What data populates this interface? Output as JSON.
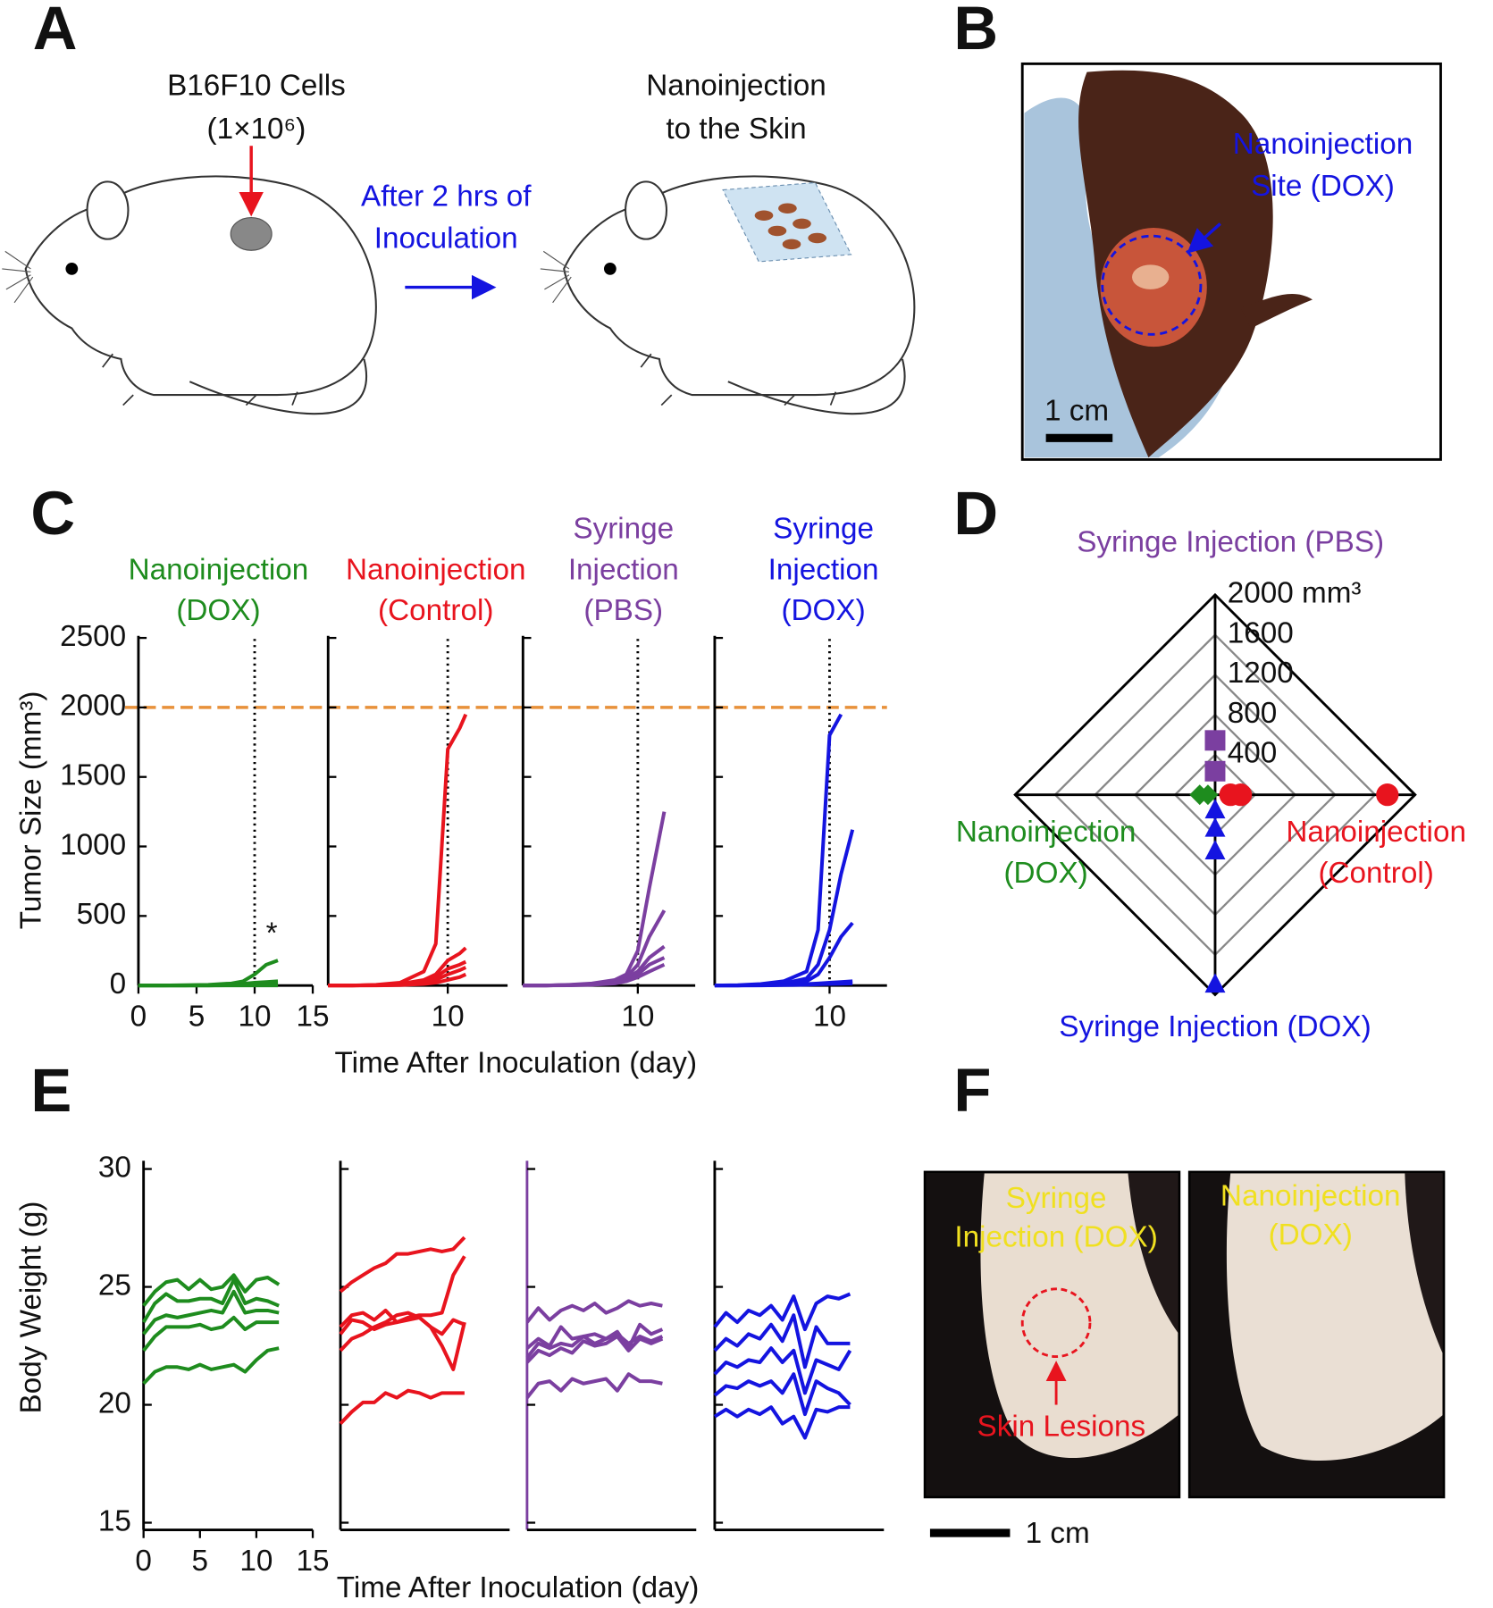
{
  "figure": {
    "panel_a": {
      "label": "A",
      "cells": [
        "B16F10 Cells",
        "(1×10⁶)"
      ],
      "step": [
        "After 2 hrs of",
        "Inoculation"
      ],
      "treatment": [
        "Nanoinjection",
        "to the Skin"
      ]
    },
    "panel_b": {
      "label": "B",
      "site": [
        "Nanoinjection",
        "Site (DOX)"
      ],
      "scale_bar": "1 cm"
    },
    "panel_f": {
      "label": "F",
      "left": [
        "Syringe",
        "Injection (DOX)"
      ],
      "lesions": "Skin Lesions",
      "right": [
        "Nanoinjection",
        "(DOX)"
      ],
      "scale_bar": "1 cm"
    }
  },
  "chart_data": [
    {
      "type": "line",
      "label": "C",
      "xlabel": "Time After Inoculation (day)",
      "ylabel": "Tumor Size (mm³)",
      "ylim": [
        0,
        2500
      ],
      "yticks": [
        0,
        500,
        1000,
        1500,
        2000,
        2500
      ],
      "threshold": 2000,
      "threshold_color": "#e8913a",
      "vline": 10,
      "annotation": "*",
      "subplots": [
        {
          "title": [
            "Nanoinjection",
            "(DOX)"
          ],
          "color": "#1e8c1e",
          "xlim": [
            0,
            15
          ],
          "xticks": [
            0,
            5,
            10,
            15
          ],
          "x": [
            0,
            2,
            4,
            6,
            8,
            9,
            10,
            11,
            12
          ],
          "series": [
            {
              "values": [
                0,
                0,
                2,
                5,
                15,
                30,
                80,
                150,
                180
              ]
            },
            {
              "values": [
                0,
                0,
                0,
                3,
                8,
                12,
                20,
                25,
                30
              ]
            },
            {
              "values": [
                0,
                0,
                0,
                0,
                3,
                5,
                8,
                10,
                12
              ]
            },
            {
              "values": [
                0,
                0,
                0,
                0,
                1,
                2,
                3,
                4,
                5
              ]
            },
            {
              "values": [
                0,
                0,
                0,
                0,
                0,
                0,
                0,
                0,
                0
              ]
            }
          ]
        },
        {
          "title": [
            "Nanoinjection",
            "(Control)"
          ],
          "color": "#e8141e",
          "xlim": [
            0,
            15
          ],
          "xticks": [
            10
          ],
          "x": [
            0,
            2,
            4,
            6,
            8,
            9,
            10,
            11,
            11.5
          ],
          "series": [
            {
              "values": [
                0,
                0,
                5,
                20,
                100,
                300,
                1700,
                1850,
                1950
              ]
            },
            {
              "values": [
                0,
                0,
                2,
                10,
                40,
                80,
                180,
                230,
                270
              ]
            },
            {
              "values": [
                0,
                0,
                2,
                8,
                30,
                60,
                120,
                150,
                170
              ]
            },
            {
              "values": [
                0,
                0,
                1,
                5,
                20,
                40,
                80,
                110,
                130
              ]
            },
            {
              "values": [
                0,
                0,
                0,
                2,
                10,
                20,
                40,
                60,
                80
              ]
            }
          ]
        },
        {
          "title": [
            "Syringe",
            "Injection",
            "(PBS)"
          ],
          "color": "#7b3fa0",
          "xlim": [
            0,
            15
          ],
          "xticks": [
            10
          ],
          "x": [
            0,
            2,
            4,
            6,
            8,
            9,
            10,
            11,
            12.3
          ],
          "series": [
            {
              "values": [
                0,
                0,
                5,
                15,
                40,
                80,
                250,
                700,
                1250
              ]
            },
            {
              "values": [
                0,
                0,
                3,
                10,
                30,
                60,
                150,
                350,
                540
              ]
            },
            {
              "values": [
                0,
                0,
                2,
                8,
                20,
                50,
                100,
                200,
                280
              ]
            },
            {
              "values": [
                0,
                0,
                2,
                6,
                20,
                40,
                80,
                150,
                200
              ]
            },
            {
              "values": [
                0,
                0,
                1,
                5,
                15,
                30,
                60,
                100,
                150
              ]
            }
          ]
        },
        {
          "title": [
            "Syringe",
            "Injection",
            "(DOX)"
          ],
          "color": "#1414e0",
          "xlim": [
            0,
            15
          ],
          "xticks": [
            10
          ],
          "x": [
            0,
            2,
            4,
            6,
            8,
            9,
            10,
            11,
            12
          ],
          "series": [
            {
              "values": [
                0,
                2,
                10,
                30,
                100,
                400,
                1800,
                1950,
                null
              ]
            },
            {
              "values": [
                0,
                0,
                5,
                15,
                50,
                150,
                400,
                800,
                1120
              ]
            },
            {
              "values": [
                0,
                0,
                3,
                10,
                30,
                80,
                200,
                350,
                450
              ]
            },
            {
              "values": [
                0,
                0,
                1,
                5,
                10,
                15,
                20,
                25,
                30
              ]
            },
            {
              "values": [
                0,
                0,
                0,
                2,
                5,
                8,
                10,
                12,
                15
              ]
            }
          ]
        }
      ]
    },
    {
      "type": "radar",
      "label": "D",
      "rlim": [
        0,
        2000
      ],
      "rticks": [
        400,
        800,
        1200,
        1600,
        {
          "value": 2000,
          "label": "2000 mm³"
        }
      ],
      "axes": [
        {
          "name": [
            "Syringe Injection (PBS)"
          ],
          "color": "#7b3fa0",
          "marker": "square",
          "values": [
            544,
            236
          ]
        },
        {
          "name": [
            "Nanoinjection",
            "(Control)"
          ],
          "color": "#e8141e",
          "marker": "circle",
          "values": [
            1723,
            256,
            154
          ]
        },
        {
          "name": [
            "Syringe Injection (DOX)"
          ],
          "color": "#1414e0",
          "marker": "triangle",
          "values": [
            154,
            338,
            564,
            1897
          ]
        },
        {
          "name": [
            "Nanoinjection",
            "(DOX)"
          ],
          "color": "#1e8c1e",
          "marker": "diamond",
          "values": [
            154,
            72
          ]
        }
      ]
    },
    {
      "type": "line",
      "label": "E",
      "xlabel": "Time After Inoculation (day)",
      "ylabel": "Body Weight (g)",
      "ylim": [
        15,
        30
      ],
      "yticks": [
        15,
        20,
        25,
        30
      ],
      "subplots": [
        {
          "color": "#1e8c1e",
          "xlim": [
            0,
            15
          ],
          "xticks": [
            0,
            5,
            10,
            15
          ],
          "x": [
            0,
            1,
            2,
            3,
            4,
            5,
            6,
            7,
            8,
            9,
            10,
            11,
            12
          ],
          "series": [
            {
              "values": [
                24.2,
                24.8,
                25.2,
                25.3,
                24.9,
                25.3,
                24.9,
                25.0,
                25.5,
                24.8,
                25.3,
                25.4,
                25.1
              ]
            },
            {
              "values": [
                23.5,
                24.3,
                24.7,
                24.4,
                24.4,
                24.5,
                24.5,
                24.3,
                25.3,
                24.3,
                24.5,
                24.4,
                24.2
              ]
            },
            {
              "values": [
                23.0,
                23.6,
                23.8,
                23.7,
                23.8,
                23.9,
                24.0,
                23.9,
                24.8,
                23.9,
                24.0,
                24.0,
                23.9
              ]
            },
            {
              "values": [
                22.3,
                22.9,
                23.3,
                23.3,
                23.3,
                23.4,
                23.2,
                23.3,
                23.7,
                23.2,
                23.5,
                23.5,
                23.5
              ]
            },
            {
              "values": [
                20.9,
                21.4,
                21.6,
                21.6,
                21.5,
                21.7,
                21.5,
                21.6,
                21.7,
                21.4,
                21.9,
                22.3,
                22.4
              ]
            }
          ]
        },
        {
          "color": "#e8141e",
          "xlim": [
            0,
            15
          ],
          "x": [
            0,
            1,
            2,
            3,
            4,
            5,
            6,
            7,
            8,
            9,
            10,
            11
          ],
          "series": [
            {
              "values": [
                24.8,
                25.2,
                25.5,
                25.8,
                26.0,
                26.4,
                26.4,
                26.5,
                26.6,
                26.5,
                26.6,
                27.1
              ]
            },
            {
              "values": [
                23.3,
                23.8,
                23.9,
                23.6,
                24.0,
                23.5,
                23.7,
                23.8,
                23.8,
                23.9,
                25.5,
                26.3
              ]
            },
            {
              "values": [
                23.0,
                23.6,
                23.5,
                23.2,
                23.4,
                23.5,
                23.6,
                23.7,
                23.3,
                22.5,
                21.5,
                23.5
              ]
            },
            {
              "values": [
                22.3,
                22.8,
                23.0,
                23.3,
                23.5,
                23.8,
                23.9,
                23.7,
                23.3,
                23.0,
                23.6,
                23.4
              ]
            },
            {
              "values": [
                19.2,
                19.7,
                20.1,
                20.1,
                20.5,
                20.3,
                20.6,
                20.5,
                20.3,
                20.5,
                20.5,
                20.5
              ]
            }
          ]
        },
        {
          "color": "#7b3fa0",
          "xlim": [
            0,
            15
          ],
          "x": [
            0,
            1,
            2,
            3,
            4,
            5,
            6,
            7,
            8,
            9,
            10,
            11,
            12
          ],
          "series": [
            {
              "values": [
                23.5,
                24.1,
                23.6,
                24.0,
                24.2,
                24.0,
                24.3,
                23.9,
                24.1,
                24.4,
                24.2,
                24.3,
                24.2
              ]
            },
            {
              "values": [
                22.4,
                22.8,
                22.5,
                23.3,
                22.8,
                22.9,
                23.0,
                22.8,
                23.1,
                22.4,
                23.4,
                23.0,
                23.2
              ]
            },
            {
              "values": [
                22.0,
                22.6,
                22.4,
                22.6,
                22.5,
                22.9,
                22.6,
                22.8,
                23.0,
                22.6,
                22.9,
                22.7,
                22.9
              ]
            },
            {
              "values": [
                21.8,
                22.3,
                22.1,
                22.4,
                22.2,
                22.7,
                22.5,
                22.6,
                22.9,
                22.3,
                22.8,
                22.6,
                22.8
              ]
            },
            {
              "values": [
                20.3,
                20.9,
                21.0,
                20.6,
                21.1,
                20.9,
                21.0,
                21.1,
                20.6,
                21.3,
                21.0,
                21.0,
                20.9
              ]
            }
          ]
        },
        {
          "color": "#1414e0",
          "xlim": [
            0,
            15
          ],
          "x": [
            0,
            1,
            2,
            3,
            4,
            5,
            6,
            7,
            8,
            9,
            10,
            11,
            12
          ],
          "series": [
            {
              "values": [
                23.3,
                23.9,
                23.5,
                24.0,
                23.8,
                24.2,
                23.6,
                24.6,
                23.2,
                24.3,
                24.6,
                24.5,
                24.7
              ]
            },
            {
              "values": [
                22.3,
                22.8,
                22.5,
                23.0,
                22.8,
                23.4,
                22.7,
                23.8,
                21.6,
                23.3,
                22.6,
                22.6,
                22.6
              ]
            },
            {
              "values": [
                21.3,
                21.8,
                21.6,
                21.9,
                21.8,
                22.4,
                21.8,
                22.3,
                20.5,
                21.9,
                21.7,
                21.5,
                22.3
              ]
            },
            {
              "values": [
                20.4,
                20.8,
                20.7,
                21.0,
                20.8,
                21.0,
                20.5,
                21.3,
                19.6,
                21.0,
                20.7,
                20.5,
                20.0
              ]
            },
            {
              "values": [
                19.5,
                19.8,
                19.5,
                19.8,
                19.6,
                19.9,
                19.2,
                19.5,
                18.6,
                19.8,
                19.7,
                19.9,
                19.9
              ]
            }
          ]
        }
      ]
    }
  ]
}
